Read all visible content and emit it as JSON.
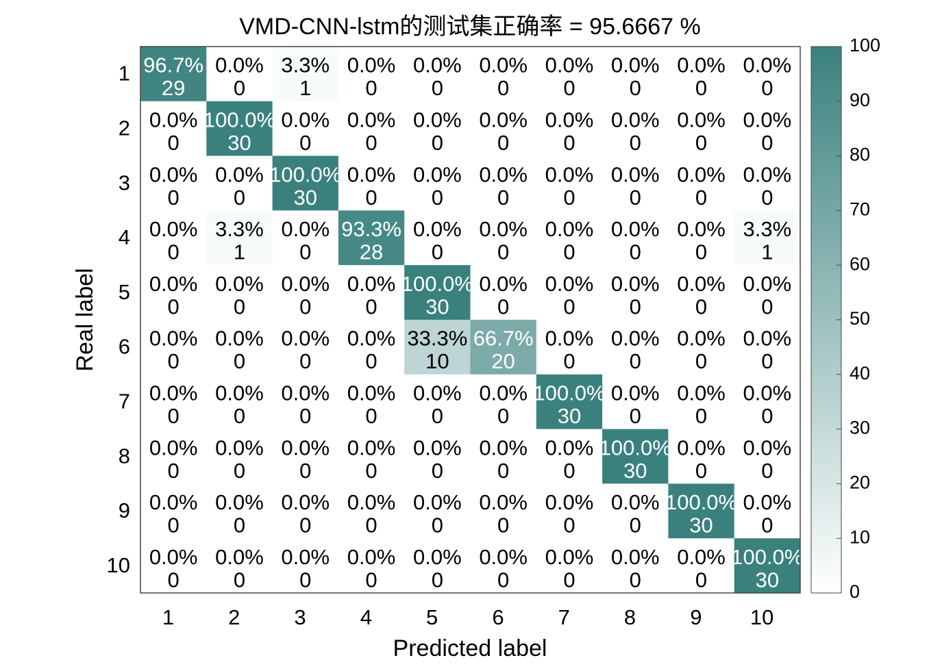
{
  "chart_data": {
    "type": "heatmap",
    "title": "VMD-CNN-lstm的测试集正确率 = 95.6667 %",
    "xlabel": "Predicted label",
    "ylabel": "Real label",
    "x_categories": [
      "1",
      "2",
      "3",
      "4",
      "5",
      "6",
      "7",
      "8",
      "9",
      "10"
    ],
    "y_categories": [
      "1",
      "2",
      "3",
      "4",
      "5",
      "6",
      "7",
      "8",
      "9",
      "10"
    ],
    "counts": [
      [
        29,
        0,
        1,
        0,
        0,
        0,
        0,
        0,
        0,
        0
      ],
      [
        0,
        30,
        0,
        0,
        0,
        0,
        0,
        0,
        0,
        0
      ],
      [
        0,
        0,
        30,
        0,
        0,
        0,
        0,
        0,
        0,
        0
      ],
      [
        0,
        1,
        0,
        28,
        0,
        0,
        0,
        0,
        0,
        1
      ],
      [
        0,
        0,
        0,
        0,
        30,
        0,
        0,
        0,
        0,
        0
      ],
      [
        0,
        0,
        0,
        0,
        10,
        20,
        0,
        0,
        0,
        0
      ],
      [
        0,
        0,
        0,
        0,
        0,
        0,
        30,
        0,
        0,
        0
      ],
      [
        0,
        0,
        0,
        0,
        0,
        0,
        0,
        30,
        0,
        0
      ],
      [
        0,
        0,
        0,
        0,
        0,
        0,
        0,
        0,
        30,
        0
      ],
      [
        0,
        0,
        0,
        0,
        0,
        0,
        0,
        0,
        0,
        30
      ]
    ],
    "percentages": [
      [
        "96.7%",
        "0.0%",
        "3.3%",
        "0.0%",
        "0.0%",
        "0.0%",
        "0.0%",
        "0.0%",
        "0.0%",
        "0.0%"
      ],
      [
        "0.0%",
        "100.0%",
        "0.0%",
        "0.0%",
        "0.0%",
        "0.0%",
        "0.0%",
        "0.0%",
        "0.0%",
        "0.0%"
      ],
      [
        "0.0%",
        "0.0%",
        "100.0%",
        "0.0%",
        "0.0%",
        "0.0%",
        "0.0%",
        "0.0%",
        "0.0%",
        "0.0%"
      ],
      [
        "0.0%",
        "3.3%",
        "0.0%",
        "93.3%",
        "0.0%",
        "0.0%",
        "0.0%",
        "0.0%",
        "0.0%",
        "3.3%"
      ],
      [
        "0.0%",
        "0.0%",
        "0.0%",
        "0.0%",
        "100.0%",
        "0.0%",
        "0.0%",
        "0.0%",
        "0.0%",
        "0.0%"
      ],
      [
        "0.0%",
        "0.0%",
        "0.0%",
        "0.0%",
        "33.3%",
        "66.7%",
        "0.0%",
        "0.0%",
        "0.0%",
        "0.0%"
      ],
      [
        "0.0%",
        "0.0%",
        "0.0%",
        "0.0%",
        "0.0%",
        "0.0%",
        "100.0%",
        "0.0%",
        "0.0%",
        "0.0%"
      ],
      [
        "0.0%",
        "0.0%",
        "0.0%",
        "0.0%",
        "0.0%",
        "0.0%",
        "0.0%",
        "100.0%",
        "0.0%",
        "0.0%"
      ],
      [
        "0.0%",
        "0.0%",
        "0.0%",
        "0.0%",
        "0.0%",
        "0.0%",
        "0.0%",
        "0.0%",
        "100.0%",
        "0.0%"
      ],
      [
        "0.0%",
        "0.0%",
        "0.0%",
        "0.0%",
        "0.0%",
        "0.0%",
        "0.0%",
        "0.0%",
        "0.0%",
        "100.0%"
      ]
    ],
    "colorbar": {
      "range": [
        0,
        100
      ],
      "ticks": [
        "0",
        "10",
        "20",
        "30",
        "40",
        "50",
        "60",
        "70",
        "80",
        "90",
        "100"
      ],
      "color_low": "#ffffff",
      "color_high": "#3a817e"
    },
    "text_color_dark": "#000000",
    "text_color_light": "#ffffff"
  }
}
